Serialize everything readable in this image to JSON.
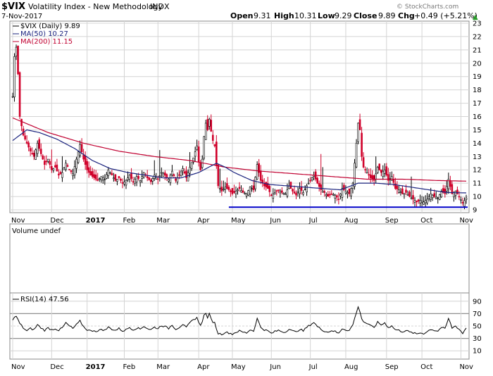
{
  "header": {
    "symbol": "$VIX",
    "name": "Volatility Index - New Methodology",
    "exchange": "INDX",
    "date": "7-Nov-2017",
    "open_label": "Open",
    "open_value": "9.31",
    "high_label": "High",
    "high_value": "10.31",
    "low_label": "Low",
    "low_value": "9.29",
    "close_label": "Close",
    "close_value": "9.89",
    "chg_label": "Chg",
    "chg_value": "+0.49 (+5.21%)",
    "chg_arrow": "▲",
    "watermark": "© StockCharts.com"
  },
  "colors": {
    "price": "#000000",
    "ma50": "#1a237e",
    "ma200": "#c00030",
    "up_bar": "#000000",
    "down_bar": "#d0002a",
    "support": "#0000c8",
    "grid": "#d4d4d4",
    "rsi_line": "#000000",
    "rsi_band": "#c8c8c8"
  },
  "chart_data": [
    {
      "type": "ohlc",
      "title": "$VIX (Daily) 9.89",
      "legend": [
        {
          "name": "$VIX (Daily) 9.89"
        },
        {
          "name": "MA(50) 10.27"
        },
        {
          "name": "MA(200) 11.15"
        }
      ],
      "ylim": [
        9,
        23
      ],
      "yticks": [
        9,
        10,
        11,
        12,
        13,
        14,
        15,
        16,
        17,
        18,
        19,
        20,
        21,
        22,
        23
      ],
      "ytick_labels": [
        "9",
        "10",
        "11",
        "12",
        "13",
        "14",
        "15",
        "16",
        "17",
        "18",
        "19",
        "20",
        "21",
        "22",
        "23"
      ],
      "xticks": [
        {
          "label": "Nov",
          "t": 0
        },
        {
          "label": "Dec",
          "t": 22
        },
        {
          "label": "2017",
          "t": 42
        },
        {
          "label": "Feb",
          "t": 63
        },
        {
          "label": "Mar",
          "t": 82
        },
        {
          "label": "Apr",
          "t": 105
        },
        {
          "label": "May",
          "t": 124
        },
        {
          "label": "Jun",
          "t": 146
        },
        {
          "label": "Jul",
          "t": 168
        },
        {
          "label": "Aug",
          "t": 188
        },
        {
          "label": "Sep",
          "t": 211
        },
        {
          "label": "Oct",
          "t": 231
        },
        {
          "label": "Nov",
          "t": 253
        }
      ],
      "close_keypoints": [
        [
          0,
          17.5
        ],
        [
          1,
          20.5
        ],
        [
          2,
          21.2
        ],
        [
          3,
          19.2
        ],
        [
          4,
          16.0
        ],
        [
          6,
          14.6
        ],
        [
          8,
          14.0
        ],
        [
          10,
          13.4
        ],
        [
          12,
          13.0
        ],
        [
          14,
          14.0
        ],
        [
          16,
          13.2
        ],
        [
          18,
          12.4
        ],
        [
          20,
          12.8
        ],
        [
          22,
          12.0
        ],
        [
          24,
          12.2
        ],
        [
          26,
          11.6
        ],
        [
          28,
          11.8
        ],
        [
          30,
          12.5
        ],
        [
          32,
          12.0
        ],
        [
          34,
          11.7
        ],
        [
          36,
          12.8
        ],
        [
          38,
          13.9
        ],
        [
          40,
          12.8
        ],
        [
          42,
          12.0
        ],
        [
          44,
          11.6
        ],
        [
          46,
          11.4
        ],
        [
          48,
          11.2
        ],
        [
          50,
          11.5
        ],
        [
          52,
          11.3
        ],
        [
          54,
          12.0
        ],
        [
          56,
          11.6
        ],
        [
          58,
          11.2
        ],
        [
          60,
          11.4
        ],
        [
          62,
          11.0
        ],
        [
          64,
          11.2
        ],
        [
          66,
          11.6
        ],
        [
          68,
          11.1
        ],
        [
          70,
          11.5
        ],
        [
          72,
          11.2
        ],
        [
          74,
          11.8
        ],
        [
          76,
          11.4
        ],
        [
          78,
          11.1
        ],
        [
          80,
          11.6
        ],
        [
          82,
          11.3
        ],
        [
          84,
          11.8
        ],
        [
          86,
          11.6
        ],
        [
          88,
          11.3
        ],
        [
          90,
          11.9
        ],
        [
          92,
          11.2
        ],
        [
          94,
          11.6
        ],
        [
          96,
          12.1
        ],
        [
          98,
          11.4
        ],
        [
          100,
          12.2
        ],
        [
          102,
          12.9
        ],
        [
          104,
          13.8
        ],
        [
          105,
          12.6
        ],
        [
          106,
          12.0
        ],
        [
          107,
          12.8
        ],
        [
          108,
          14.5
        ],
        [
          109,
          15.5
        ],
        [
          110,
          15.0
        ],
        [
          111,
          15.8
        ],
        [
          112,
          14.9
        ],
        [
          113,
          14.2
        ],
        [
          114,
          13.8
        ],
        [
          115,
          12.3
        ],
        [
          116,
          10.8
        ],
        [
          118,
          10.4
        ],
        [
          120,
          10.7
        ],
        [
          122,
          10.5
        ],
        [
          124,
          10.2
        ],
        [
          126,
          10.4
        ],
        [
          128,
          10.6
        ],
        [
          130,
          10.3
        ],
        [
          132,
          10.2
        ],
        [
          134,
          10.7
        ],
        [
          136,
          10.5
        ],
        [
          138,
          12.4
        ],
        [
          140,
          11.2
        ],
        [
          142,
          10.8
        ],
        [
          144,
          10.6
        ],
        [
          146,
          10.1
        ],
        [
          148,
          10.3
        ],
        [
          150,
          10.5
        ],
        [
          152,
          10.3
        ],
        [
          154,
          10.2
        ],
        [
          156,
          10.8
        ],
        [
          158,
          10.4
        ],
        [
          160,
          10.1
        ],
        [
          162,
          10.6
        ],
        [
          164,
          10.3
        ],
        [
          166,
          10.8
        ],
        [
          168,
          11.2
        ],
        [
          170,
          11.6
        ],
        [
          172,
          11.0
        ],
        [
          174,
          10.5
        ],
        [
          176,
          10.3
        ],
        [
          178,
          10.0
        ],
        [
          180,
          10.2
        ],
        [
          182,
          10.1
        ],
        [
          184,
          9.8
        ],
        [
          186,
          10.6
        ],
        [
          188,
          10.4
        ],
        [
          190,
          10.2
        ],
        [
          192,
          11.0
        ],
        [
          194,
          14.0
        ],
        [
          195,
          15.5
        ],
        [
          196,
          15.0
        ],
        [
          197,
          13.0
        ],
        [
          198,
          12.2
        ],
        [
          200,
          11.8
        ],
        [
          202,
          11.4
        ],
        [
          204,
          11.2
        ],
        [
          206,
          12.2
        ],
        [
          208,
          11.8
        ],
        [
          210,
          12.0
        ],
        [
          212,
          11.2
        ],
        [
          214,
          11.5
        ],
        [
          216,
          10.6
        ],
        [
          218,
          10.5
        ],
        [
          220,
          10.2
        ],
        [
          222,
          10.3
        ],
        [
          224,
          10.0
        ],
        [
          226,
          9.8
        ],
        [
          228,
          9.6
        ],
        [
          230,
          9.7
        ],
        [
          232,
          9.6
        ],
        [
          234,
          9.8
        ],
        [
          236,
          10.2
        ],
        [
          238,
          10.0
        ],
        [
          240,
          9.9
        ],
        [
          242,
          10.4
        ],
        [
          244,
          10.2
        ],
        [
          246,
          11.3
        ],
        [
          248,
          10.2
        ],
        [
          250,
          10.4
        ],
        [
          252,
          10.0
        ],
        [
          254,
          9.5
        ],
        [
          256,
          9.89
        ]
      ],
      "ma200_keypoints": [
        [
          0,
          15.9
        ],
        [
          20,
          14.8
        ],
        [
          40,
          14.0
        ],
        [
          60,
          13.4
        ],
        [
          80,
          13.0
        ],
        [
          100,
          12.7
        ],
        [
          120,
          12.2
        ],
        [
          140,
          11.9
        ],
        [
          160,
          11.7
        ],
        [
          180,
          11.5
        ],
        [
          200,
          11.3
        ],
        [
          220,
          11.3
        ],
        [
          240,
          11.2
        ],
        [
          256,
          11.15
        ]
      ],
      "ma50_keypoints": [
        [
          0,
          14.2
        ],
        [
          8,
          15.0
        ],
        [
          15,
          14.8
        ],
        [
          25,
          14.3
        ],
        [
          35,
          13.6
        ],
        [
          45,
          12.7
        ],
        [
          55,
          12.1
        ],
        [
          65,
          11.8
        ],
        [
          75,
          11.6
        ],
        [
          85,
          11.4
        ],
        [
          95,
          11.4
        ],
        [
          105,
          11.8
        ],
        [
          115,
          12.5
        ],
        [
          120,
          12.2
        ],
        [
          125,
          11.8
        ],
        [
          135,
          11.2
        ],
        [
          145,
          10.9
        ],
        [
          155,
          10.8
        ],
        [
          165,
          10.7
        ],
        [
          175,
          10.6
        ],
        [
          185,
          10.5
        ],
        [
          195,
          11.0
        ],
        [
          205,
          11.0
        ],
        [
          215,
          10.9
        ],
        [
          225,
          10.7
        ],
        [
          235,
          10.5
        ],
        [
          245,
          10.3
        ],
        [
          256,
          10.27
        ]
      ],
      "support_level": 9.2,
      "support_from_t": 122
    },
    {
      "type": "volume",
      "title": "Volume undef"
    },
    {
      "type": "line",
      "title": "RSI(14) 47.56",
      "ylim": [
        0,
        100
      ],
      "yticks": [
        10,
        30,
        50,
        70,
        90
      ],
      "ytick_labels": [
        "10",
        "30",
        "50",
        "70",
        "90"
      ],
      "bands": [
        30,
        70
      ],
      "midline": 50,
      "xtick_labels": [
        "Nov",
        "Dec",
        "2017",
        "Feb",
        "Mar",
        "Apr",
        "May",
        "Jun",
        "Jul",
        "Aug",
        "Sep",
        "Oct",
        "Nov"
      ],
      "rsi_keypoints": [
        [
          0,
          61
        ],
        [
          2,
          66
        ],
        [
          4,
          54
        ],
        [
          6,
          47
        ],
        [
          8,
          42
        ],
        [
          10,
          46
        ],
        [
          12,
          44
        ],
        [
          14,
          52
        ],
        [
          16,
          47
        ],
        [
          18,
          43
        ],
        [
          20,
          47
        ],
        [
          22,
          44
        ],
        [
          24,
          46
        ],
        [
          26,
          43
        ],
        [
          28,
          47
        ],
        [
          30,
          55
        ],
        [
          32,
          50
        ],
        [
          34,
          46
        ],
        [
          36,
          52
        ],
        [
          38,
          58
        ],
        [
          40,
          49
        ],
        [
          42,
          44
        ],
        [
          44,
          42
        ],
        [
          46,
          43
        ],
        [
          48,
          41
        ],
        [
          50,
          45
        ],
        [
          52,
          43
        ],
        [
          54,
          48
        ],
        [
          56,
          45
        ],
        [
          58,
          43
        ],
        [
          60,
          46
        ],
        [
          62,
          42
        ],
        [
          64,
          44
        ],
        [
          66,
          48
        ],
        [
          68,
          44
        ],
        [
          70,
          47
        ],
        [
          72,
          45
        ],
        [
          74,
          50
        ],
        [
          76,
          46
        ],
        [
          78,
          44
        ],
        [
          80,
          48
        ],
        [
          82,
          46
        ],
        [
          84,
          51
        ],
        [
          86,
          49
        ],
        [
          88,
          46
        ],
        [
          90,
          52
        ],
        [
          92,
          45
        ],
        [
          94,
          48
        ],
        [
          96,
          53
        ],
        [
          98,
          47
        ],
        [
          100,
          55
        ],
        [
          102,
          60
        ],
        [
          104,
          64
        ],
        [
          105,
          55
        ],
        [
          106,
          52
        ],
        [
          107,
          58
        ],
        [
          108,
          67
        ],
        [
          109,
          70
        ],
        [
          110,
          64
        ],
        [
          111,
          69
        ],
        [
          112,
          61
        ],
        [
          113,
          57
        ],
        [
          114,
          55
        ],
        [
          115,
          46
        ],
        [
          116,
          38
        ],
        [
          118,
          37
        ],
        [
          120,
          40
        ],
        [
          122,
          39
        ],
        [
          124,
          37
        ],
        [
          126,
          40
        ],
        [
          128,
          42
        ],
        [
          130,
          40
        ],
        [
          132,
          39
        ],
        [
          134,
          44
        ],
        [
          136,
          42
        ],
        [
          138,
          62
        ],
        [
          140,
          48
        ],
        [
          142,
          44
        ],
        [
          144,
          42
        ],
        [
          146,
          38
        ],
        [
          148,
          41
        ],
        [
          150,
          43
        ],
        [
          152,
          41
        ],
        [
          154,
          40
        ],
        [
          156,
          46
        ],
        [
          158,
          42
        ],
        [
          160,
          40
        ],
        [
          162,
          45
        ],
        [
          164,
          42
        ],
        [
          166,
          48
        ],
        [
          168,
          52
        ],
        [
          170,
          56
        ],
        [
          172,
          49
        ],
        [
          174,
          45
        ],
        [
          176,
          42
        ],
        [
          178,
          40
        ],
        [
          180,
          43
        ],
        [
          182,
          41
        ],
        [
          184,
          38
        ],
        [
          186,
          46
        ],
        [
          188,
          44
        ],
        [
          190,
          43
        ],
        [
          192,
          52
        ],
        [
          194,
          72
        ],
        [
          195,
          80
        ],
        [
          196,
          74
        ],
        [
          197,
          62
        ],
        [
          198,
          57
        ],
        [
          200,
          54
        ],
        [
          202,
          50
        ],
        [
          204,
          48
        ],
        [
          206,
          56
        ],
        [
          208,
          52
        ],
        [
          210,
          55
        ],
        [
          212,
          48
        ],
        [
          214,
          50
        ],
        [
          216,
          44
        ],
        [
          218,
          43
        ],
        [
          220,
          41
        ],
        [
          222,
          43
        ],
        [
          224,
          40
        ],
        [
          226,
          39
        ],
        [
          228,
          37
        ],
        [
          230,
          39
        ],
        [
          232,
          38
        ],
        [
          234,
          41
        ],
        [
          236,
          45
        ],
        [
          238,
          43
        ],
        [
          240,
          42
        ],
        [
          242,
          48
        ],
        [
          244,
          45
        ],
        [
          246,
          62
        ],
        [
          248,
          47
        ],
        [
          250,
          50
        ],
        [
          252,
          45
        ],
        [
          254,
          38
        ],
        [
          256,
          47.56
        ]
      ],
      "xlim": [
        0,
        256
      ]
    }
  ]
}
